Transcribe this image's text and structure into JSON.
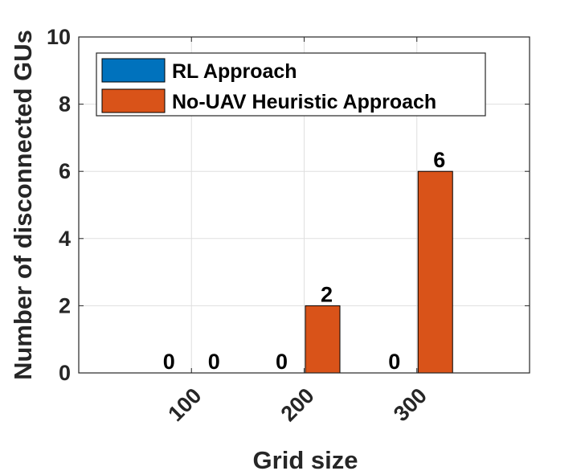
{
  "chart_data": {
    "type": "bar",
    "categories": [
      "100",
      "200",
      "300"
    ],
    "series": [
      {
        "name": "RL Approach",
        "color": "#0072BD",
        "values": [
          0,
          0,
          0
        ]
      },
      {
        "name": "No-UAV Heuristic Approach",
        "color": "#D95319",
        "values": [
          0,
          2,
          6
        ]
      }
    ],
    "xlabel": "Grid size",
    "ylabel": "Number of disconnected GUs",
    "ylim": [
      0,
      10
    ],
    "yticks": [
      0,
      2,
      4,
      6,
      8,
      10
    ],
    "grid": true,
    "legend_position": "top-left",
    "data_labels": [
      [
        "0",
        "0",
        "0"
      ],
      [
        "0",
        "2",
        "6"
      ]
    ]
  }
}
